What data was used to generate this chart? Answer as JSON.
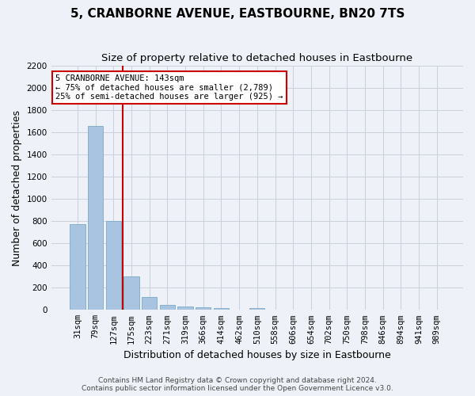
{
  "title": "5, CRANBORNE AVENUE, EASTBOURNE, BN20 7TS",
  "subtitle": "Size of property relative to detached houses in Eastbourne",
  "xlabel": "Distribution of detached houses by size in Eastbourne",
  "ylabel": "Number of detached properties",
  "footer_line1": "Contains HM Land Registry data © Crown copyright and database right 2024.",
  "footer_line2": "Contains public sector information licensed under the Open Government Licence v3.0.",
  "categories": [
    "31sqm",
    "79sqm",
    "127sqm",
    "175sqm",
    "223sqm",
    "271sqm",
    "319sqm",
    "366sqm",
    "414sqm",
    "462sqm",
    "510sqm",
    "558sqm",
    "606sqm",
    "654sqm",
    "702sqm",
    "750sqm",
    "798sqm",
    "846sqm",
    "894sqm",
    "941sqm",
    "989sqm"
  ],
  "values": [
    775,
    1660,
    800,
    300,
    115,
    45,
    30,
    25,
    20,
    0,
    20,
    0,
    0,
    0,
    0,
    0,
    0,
    0,
    0,
    0,
    0
  ],
  "bar_color": "#a8c4e0",
  "bar_edge_color": "#7aaac8",
  "background_color": "#eef2f8",
  "grid_color": "#c8d0dc",
  "annotation_text": "5 CRANBORNE AVENUE: 143sqm\n← 75% of detached houses are smaller (2,789)\n25% of semi-detached houses are larger (925) →",
  "annotation_box_color": "#ffffff",
  "annotation_box_edge": "#cc0000",
  "vline_color": "#cc0000",
  "vline_x_index": 2,
  "ylim": [
    0,
    2200
  ],
  "yticks": [
    0,
    200,
    400,
    600,
    800,
    1000,
    1200,
    1400,
    1600,
    1800,
    2000,
    2200
  ],
  "title_fontsize": 11,
  "subtitle_fontsize": 9.5,
  "axis_label_fontsize": 9,
  "tick_fontsize": 7.5,
  "footer_fontsize": 6.5
}
